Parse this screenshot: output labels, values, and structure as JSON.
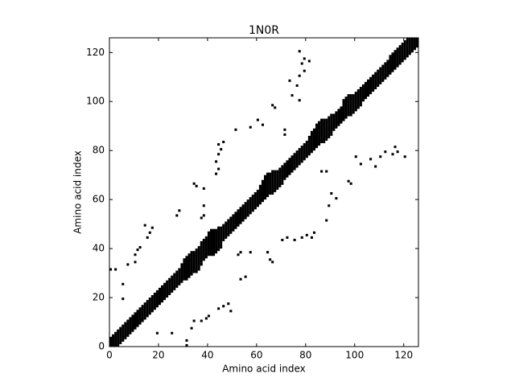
{
  "chart_data": {
    "type": "contact_map",
    "title": "1N0R",
    "x_label": "Amino acid index",
    "y_label": "Amino acid index",
    "color": "#000000",
    "xlim": [
      0,
      126
    ],
    "ylim": [
      0,
      126
    ],
    "xticks": [
      0,
      20,
      40,
      60,
      80,
      100,
      120
    ],
    "yticks": [
      0,
      20,
      40,
      60,
      80,
      100,
      120
    ],
    "bands": [
      [
        0,
        0,
        3
      ],
      [
        1,
        0,
        4
      ],
      [
        2,
        0,
        5
      ],
      [
        3,
        0,
        6
      ],
      [
        4,
        1,
        7
      ],
      [
        5,
        2,
        8
      ],
      [
        6,
        3,
        9
      ],
      [
        7,
        4,
        10
      ],
      [
        8,
        5,
        11
      ],
      [
        9,
        6,
        12
      ],
      [
        10,
        7,
        13
      ],
      [
        11,
        8,
        14
      ],
      [
        12,
        9,
        15
      ],
      [
        13,
        10,
        16
      ],
      [
        14,
        11,
        17
      ],
      [
        15,
        12,
        18
      ],
      [
        16,
        13,
        19
      ],
      [
        17,
        14,
        20
      ],
      [
        18,
        15,
        21
      ],
      [
        19,
        16,
        22
      ],
      [
        20,
        17,
        23
      ],
      [
        21,
        18,
        24
      ],
      [
        22,
        19,
        25
      ],
      [
        23,
        20,
        26
      ],
      [
        24,
        21,
        27
      ],
      [
        25,
        22,
        28
      ],
      [
        26,
        23,
        29
      ],
      [
        27,
        24,
        30
      ],
      [
        28,
        25,
        31
      ],
      [
        29,
        26,
        33
      ],
      [
        30,
        27,
        35
      ],
      [
        31,
        27,
        36
      ],
      [
        32,
        28,
        37
      ],
      [
        33,
        29,
        38
      ],
      [
        34,
        30,
        38
      ],
      [
        35,
        30,
        39
      ],
      [
        36,
        31,
        40
      ],
      [
        37,
        33,
        42
      ],
      [
        38,
        35,
        43
      ],
      [
        39,
        36,
        44
      ],
      [
        40,
        37,
        46
      ],
      [
        41,
        37,
        47
      ],
      [
        42,
        37,
        47
      ],
      [
        43,
        38,
        47
      ],
      [
        44,
        39,
        48
      ],
      [
        45,
        40,
        48
      ],
      [
        46,
        43,
        49
      ],
      [
        47,
        44,
        50
      ],
      [
        48,
        45,
        51
      ],
      [
        49,
        46,
        52
      ],
      [
        50,
        47,
        53
      ],
      [
        51,
        48,
        54
      ],
      [
        52,
        49,
        55
      ],
      [
        53,
        50,
        56
      ],
      [
        54,
        51,
        57
      ],
      [
        55,
        52,
        58
      ],
      [
        56,
        53,
        59
      ],
      [
        57,
        54,
        60
      ],
      [
        58,
        55,
        61
      ],
      [
        59,
        56,
        62
      ],
      [
        60,
        57,
        63
      ],
      [
        61,
        58,
        65
      ],
      [
        62,
        59,
        67
      ],
      [
        63,
        60,
        69
      ],
      [
        64,
        61,
        70
      ],
      [
        65,
        62,
        70
      ],
      [
        66,
        62,
        71
      ],
      [
        67,
        63,
        71
      ],
      [
        68,
        64,
        71
      ],
      [
        69,
        65,
        72
      ],
      [
        70,
        66,
        73
      ],
      [
        71,
        68,
        74
      ],
      [
        72,
        69,
        75
      ],
      [
        73,
        70,
        76
      ],
      [
        74,
        71,
        77
      ],
      [
        75,
        72,
        78
      ],
      [
        76,
        73,
        79
      ],
      [
        77,
        74,
        80
      ],
      [
        78,
        75,
        81
      ],
      [
        79,
        76,
        82
      ],
      [
        80,
        77,
        83
      ],
      [
        81,
        78,
        85
      ],
      [
        82,
        79,
        87
      ],
      [
        83,
        80,
        88
      ],
      [
        84,
        81,
        90
      ],
      [
        85,
        82,
        91
      ],
      [
        86,
        83,
        92
      ],
      [
        87,
        83,
        92
      ],
      [
        88,
        84,
        92
      ],
      [
        89,
        85,
        93
      ],
      [
        90,
        86,
        94
      ],
      [
        91,
        88,
        94
      ],
      [
        92,
        89,
        95
      ],
      [
        93,
        90,
        96
      ],
      [
        94,
        91,
        97
      ],
      [
        95,
        92,
        100
      ],
      [
        96,
        93,
        101
      ],
      [
        97,
        94,
        102
      ],
      [
        98,
        94,
        102
      ],
      [
        99,
        95,
        102
      ],
      [
        100,
        96,
        103
      ],
      [
        101,
        97,
        104
      ],
      [
        102,
        98,
        105
      ],
      [
        103,
        100,
        106
      ],
      [
        104,
        101,
        107
      ],
      [
        105,
        102,
        108
      ],
      [
        106,
        103,
        109
      ],
      [
        107,
        104,
        110
      ],
      [
        108,
        105,
        111
      ],
      [
        109,
        106,
        112
      ],
      [
        110,
        107,
        113
      ],
      [
        111,
        108,
        114
      ],
      [
        112,
        109,
        115
      ],
      [
        113,
        110,
        116
      ],
      [
        114,
        111,
        118
      ],
      [
        115,
        112,
        119
      ],
      [
        116,
        113,
        120
      ],
      [
        117,
        114,
        121
      ],
      [
        118,
        115,
        122
      ],
      [
        119,
        116,
        123
      ],
      [
        120,
        117,
        124
      ],
      [
        121,
        118,
        125
      ],
      [
        122,
        119,
        125
      ],
      [
        123,
        120,
        125
      ],
      [
        124,
        121,
        125
      ],
      [
        125,
        122,
        125
      ]
    ],
    "points": {
      "x": [
        31,
        31,
        19,
        25,
        33,
        34,
        37,
        39,
        40,
        44,
        46,
        48,
        49,
        53,
        55,
        52,
        53,
        57,
        64,
        65,
        66,
        70,
        72,
        75,
        78,
        80,
        82,
        83,
        88,
        89,
        90,
        92,
        97,
        98,
        86,
        88,
        100,
        102,
        106,
        108,
        110,
        112,
        115,
        116,
        117,
        120,
        0,
        2,
        5,
        5,
        7,
        10,
        10,
        11,
        12,
        15,
        16,
        17,
        14,
        27,
        28,
        37,
        38,
        38,
        38,
        35,
        34,
        43,
        44,
        43,
        44,
        45,
        44,
        46,
        51,
        57,
        62,
        60,
        67,
        66,
        71,
        71,
        77,
        74,
        76,
        73,
        77,
        79,
        78,
        81,
        79,
        77
      ],
      "y": [
        0,
        2,
        5,
        5,
        7,
        10,
        10,
        11,
        12,
        15,
        16,
        17,
        14,
        27,
        28,
        37,
        38,
        38,
        38,
        35,
        34,
        43,
        44,
        43,
        44,
        45,
        44,
        46,
        51,
        57,
        62,
        60,
        67,
        66,
        71,
        71,
        77,
        74,
        76,
        73,
        77,
        79,
        78,
        81,
        79,
        77,
        31,
        31,
        19,
        25,
        33,
        34,
        37,
        39,
        40,
        44,
        46,
        48,
        49,
        53,
        55,
        52,
        53,
        57,
        64,
        65,
        66,
        70,
        72,
        75,
        78,
        80,
        82,
        83,
        88,
        89,
        90,
        92,
        97,
        98,
        86,
        88,
        100,
        102,
        106,
        108,
        110,
        112,
        115,
        116,
        117,
        120
      ]
    }
  }
}
